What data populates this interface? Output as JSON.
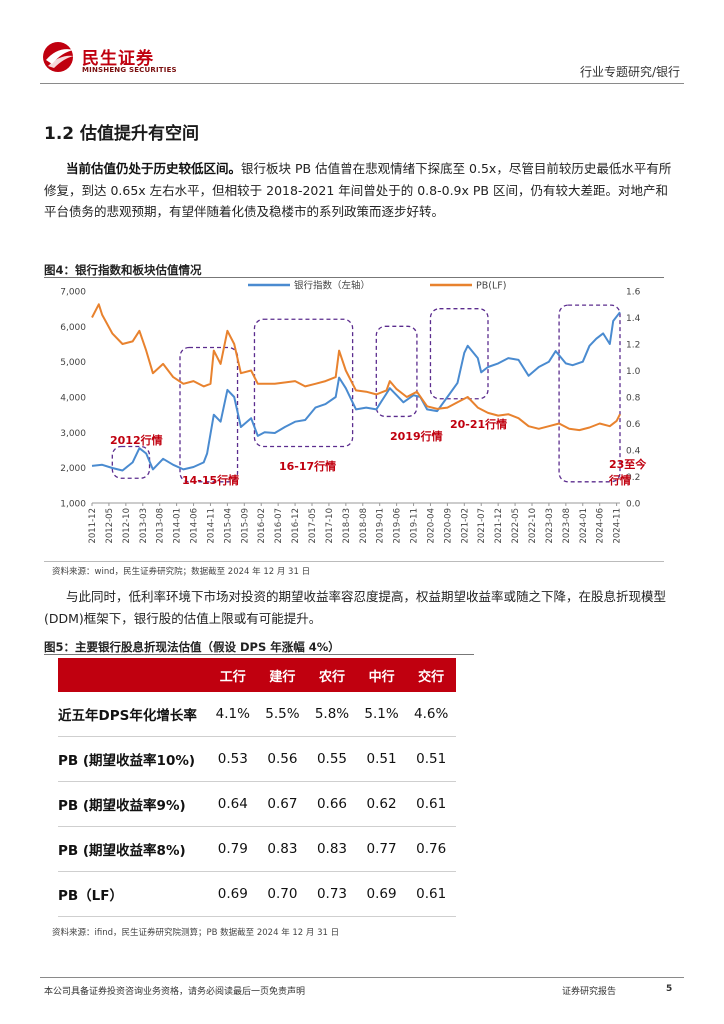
{
  "header": {
    "logo_name": "民生证券",
    "logo_sub": "MINSHENG SECURITIES",
    "category": "行业专题研究/银行"
  },
  "section": {
    "title": "1.2 估值提升有空间",
    "lead_bold": "当前估值仍处于历史较低区间。",
    "paragraph_rest": "银行板块 PB 估值曾在悲观情绪下探底至 0.5x，尽管目前较历史最低水平有所修复，到达 0.65x 左右水平，但相较于 2018-2021 年间曾处于的 0.8-0.9x PB 区间，仍有较大差距。对地产和平台债务的悲观预期，有望伴随着化债及稳楼市的系列政策而逐步好转。",
    "paragraph2": "与此同时，低利率环境下市场对投资的期望收益率容忍度提高，权益期望收益率或随之下降，在股息折现模型(DDM)框架下，银行股的估值上限或有可能提升。"
  },
  "figure4": {
    "title": "图4：银行指数和板块估值情况",
    "source": "资料来源：wind，民生证券研究院；数据截至 2024 年 12 月 31 日"
  },
  "figure5": {
    "title": "图5：主要银行股息折现法估值（假设 DPS 年涨幅 4%）",
    "source": "资料来源：ifind，民生证券研究院测算；PB 数据截至 2024 年 12 月 31 日"
  },
  "chart_data": {
    "type": "line",
    "title": "",
    "series": [
      {
        "name": "银行指数（左轴）",
        "color": "#4a8bd0",
        "axis": "left",
        "points": [
          [
            "2011-12",
            2050
          ],
          [
            "2012-03",
            2080
          ],
          [
            "2012-06",
            1990
          ],
          [
            "2012-09",
            1920
          ],
          [
            "2012-12",
            2150
          ],
          [
            "2013-02",
            2550
          ],
          [
            "2013-04",
            2400
          ],
          [
            "2013-06",
            1950
          ],
          [
            "2013-09",
            2250
          ],
          [
            "2013-12",
            2080
          ],
          [
            "2014-03",
            1950
          ],
          [
            "2014-06",
            2020
          ],
          [
            "2014-09",
            2150
          ],
          [
            "2014-10",
            2400
          ],
          [
            "2014-12",
            3500
          ],
          [
            "2015-02",
            3300
          ],
          [
            "2015-04",
            4200
          ],
          [
            "2015-06",
            4000
          ],
          [
            "2015-08",
            3150
          ],
          [
            "2015-11",
            3400
          ],
          [
            "2016-01",
            2900
          ],
          [
            "2016-03",
            3000
          ],
          [
            "2016-06",
            2980
          ],
          [
            "2016-09",
            3150
          ],
          [
            "2016-12",
            3300
          ],
          [
            "2017-03",
            3350
          ],
          [
            "2017-06",
            3700
          ],
          [
            "2017-09",
            3800
          ],
          [
            "2017-12",
            4000
          ],
          [
            "2018-01",
            4550
          ],
          [
            "2018-03",
            4250
          ],
          [
            "2018-06",
            3650
          ],
          [
            "2018-09",
            3700
          ],
          [
            "2018-12",
            3650
          ],
          [
            "2019-03",
            4100
          ],
          [
            "2019-04",
            4250
          ],
          [
            "2019-06",
            4050
          ],
          [
            "2019-08",
            3850
          ],
          [
            "2019-11",
            4050
          ],
          [
            "2020-01",
            4000
          ],
          [
            "2020-03",
            3650
          ],
          [
            "2020-06",
            3600
          ],
          [
            "2020-09",
            4000
          ],
          [
            "2020-12",
            4400
          ],
          [
            "2021-02",
            5250
          ],
          [
            "2021-03",
            5450
          ],
          [
            "2021-06",
            5100
          ],
          [
            "2021-07",
            4700
          ],
          [
            "2021-09",
            4850
          ],
          [
            "2021-12",
            4950
          ],
          [
            "2022-03",
            5100
          ],
          [
            "2022-06",
            5050
          ],
          [
            "2022-09",
            4600
          ],
          [
            "2022-12",
            4850
          ],
          [
            "2023-03",
            5000
          ],
          [
            "2023-05",
            5300
          ],
          [
            "2023-08",
            4950
          ],
          [
            "2023-10",
            4900
          ],
          [
            "2024-01",
            5000
          ],
          [
            "2024-03",
            5450
          ],
          [
            "2024-05",
            5650
          ],
          [
            "2024-07",
            5800
          ],
          [
            "2024-09",
            5500
          ],
          [
            "2024-10",
            6150
          ],
          [
            "2024-12",
            6400
          ]
        ]
      },
      {
        "name": "PB(LF)",
        "color": "#e8822e",
        "axis": "right",
        "points": [
          [
            "2011-12",
            1.4
          ],
          [
            "2012-02",
            1.5
          ],
          [
            "2012-03",
            1.42
          ],
          [
            "2012-06",
            1.28
          ],
          [
            "2012-09",
            1.2
          ],
          [
            "2012-12",
            1.22
          ],
          [
            "2013-02",
            1.3
          ],
          [
            "2013-04",
            1.15
          ],
          [
            "2013-06",
            0.98
          ],
          [
            "2013-09",
            1.05
          ],
          [
            "2013-12",
            0.95
          ],
          [
            "2014-03",
            0.9
          ],
          [
            "2014-06",
            0.92
          ],
          [
            "2014-09",
            0.88
          ],
          [
            "2014-11",
            0.9
          ],
          [
            "2014-12",
            1.15
          ],
          [
            "2015-02",
            1.05
          ],
          [
            "2015-04",
            1.3
          ],
          [
            "2015-06",
            1.2
          ],
          [
            "2015-08",
            0.98
          ],
          [
            "2015-11",
            1.0
          ],
          [
            "2016-01",
            0.9
          ],
          [
            "2016-06",
            0.9
          ],
          [
            "2016-12",
            0.92
          ],
          [
            "2017-03",
            0.88
          ],
          [
            "2017-06",
            0.9
          ],
          [
            "2017-09",
            0.92
          ],
          [
            "2017-12",
            0.95
          ],
          [
            "2018-01",
            1.15
          ],
          [
            "2018-03",
            1.0
          ],
          [
            "2018-06",
            0.85
          ],
          [
            "2018-09",
            0.84
          ],
          [
            "2018-12",
            0.82
          ],
          [
            "2019-03",
            0.85
          ],
          [
            "2019-04",
            0.92
          ],
          [
            "2019-06",
            0.86
          ],
          [
            "2019-09",
            0.8
          ],
          [
            "2019-12",
            0.84
          ],
          [
            "2020-03",
            0.73
          ],
          [
            "2020-06",
            0.71
          ],
          [
            "2020-09",
            0.72
          ],
          [
            "2020-12",
            0.76
          ],
          [
            "2021-03",
            0.8
          ],
          [
            "2021-06",
            0.72
          ],
          [
            "2021-09",
            0.68
          ],
          [
            "2021-12",
            0.66
          ],
          [
            "2022-03",
            0.67
          ],
          [
            "2022-06",
            0.64
          ],
          [
            "2022-09",
            0.58
          ],
          [
            "2022-12",
            0.56
          ],
          [
            "2023-03",
            0.58
          ],
          [
            "2023-06",
            0.6
          ],
          [
            "2023-09",
            0.56
          ],
          [
            "2023-12",
            0.55
          ],
          [
            "2024-03",
            0.57
          ],
          [
            "2024-06",
            0.6
          ],
          [
            "2024-09",
            0.58
          ],
          [
            "2024-11",
            0.62
          ],
          [
            "2024-12",
            0.67
          ]
        ]
      }
    ],
    "left_axis": {
      "min": 1000,
      "max": 7000,
      "ticks": [
        "1,000",
        "2,000",
        "3,000",
        "4,000",
        "5,000",
        "6,000",
        "7,000"
      ]
    },
    "right_axis": {
      "min": 0.0,
      "max": 1.6,
      "ticks": [
        "0.0",
        "0.2",
        "0.4",
        "0.6",
        "0.8",
        "1.0",
        "1.2",
        "1.4",
        "1.6"
      ]
    },
    "x_start": "2011-12",
    "x_end": "2024-12",
    "x_ticks": [
      "2011-12",
      "2012-05",
      "2012-10",
      "2013-03",
      "2013-08",
      "2014-01",
      "2014-06",
      "2014-11",
      "2015-04",
      "2015-09",
      "2016-02",
      "2016-07",
      "2016-12",
      "2017-05",
      "2017-10",
      "2018-03",
      "2018-08",
      "2019-01",
      "2019-06",
      "2019-11",
      "2020-04",
      "2020-09",
      "2021-02",
      "2021-07",
      "2021-12",
      "2022-05",
      "2022-10",
      "2023-03",
      "2023-08",
      "2024-01",
      "2024-06",
      "2024-11"
    ],
    "legend_position": "top",
    "grid": false,
    "annotations": [
      {
        "label": "2012行情",
        "color": "#c0000f",
        "box_from": "2012-06",
        "box_to": "2013-05",
        "box_low": 1700,
        "box_high": 2600
      },
      {
        "label": "14-15行情",
        "color": "#c0000f",
        "box_from": "2014-02",
        "box_to": "2015-07",
        "box_low": 1600,
        "box_high": 5400
      },
      {
        "label": "16-17行情",
        "color": "#c0000f",
        "box_from": "2015-12",
        "box_to": "2018-05",
        "box_low": 2600,
        "box_high": 6200
      },
      {
        "label": "2019行情",
        "color": "#c0000f",
        "box_from": "2018-12",
        "box_to": "2019-12",
        "box_low": 3450,
        "box_high": 6000
      },
      {
        "label": "20-21行情",
        "color": "#c0000f",
        "box_from": "2020-04",
        "box_to": "2021-09",
        "box_low": 3950,
        "box_high": 6500
      },
      {
        "label": "23至今行情",
        "label_lines": [
          "23至今",
          "行情"
        ],
        "color": "#c0000f",
        "box_from": "2023-06",
        "box_to": "2024-12",
        "box_low": 1600,
        "box_high": 6600
      }
    ]
  },
  "table": {
    "columns": [
      "工行",
      "建行",
      "农行",
      "中行",
      "交行"
    ],
    "rows": [
      {
        "label": "近五年DPS年化增长率",
        "values": [
          "4.1%",
          "5.5%",
          "5.8%",
          "5.1%",
          "4.6%"
        ]
      },
      {
        "label": "PB (期望收益率10%)",
        "values": [
          "0.53",
          "0.56",
          "0.55",
          "0.51",
          "0.51"
        ]
      },
      {
        "label": "PB (期望收益率9%)",
        "values": [
          "0.64",
          "0.67",
          "0.66",
          "0.62",
          "0.61"
        ]
      },
      {
        "label": "PB (期望收益率8%)",
        "values": [
          "0.79",
          "0.83",
          "0.83",
          "0.77",
          "0.76"
        ]
      },
      {
        "label": "PB（LF）",
        "values": [
          "0.69",
          "0.70",
          "0.73",
          "0.69",
          "0.61"
        ]
      }
    ]
  },
  "footer": {
    "disclaimer": "本公司具备证券投资咨询业务资格，请务必阅读最后一页免责声明",
    "doc_type": "证券研究报告",
    "page": "5"
  }
}
